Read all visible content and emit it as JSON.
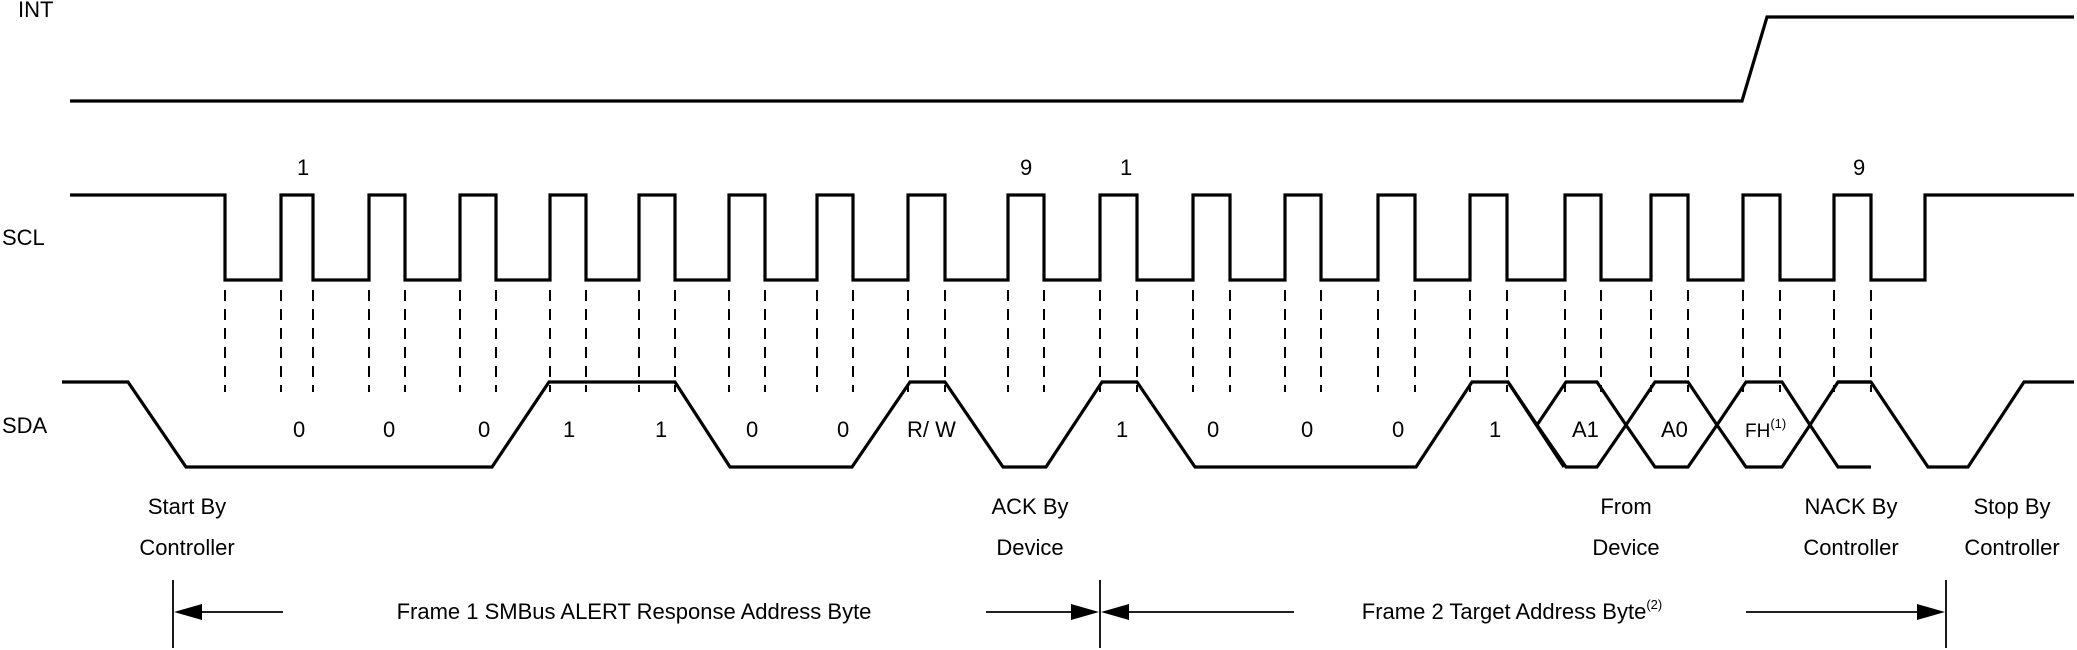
{
  "signals": {
    "int": "INT",
    "scl": "SCL",
    "sda": "SDA"
  },
  "clock_numbers": {
    "first_start": "1",
    "first_end": "9",
    "second_start": "1",
    "second_end": "9"
  },
  "frame1_bits": [
    "0",
    "0",
    "0",
    "1",
    "1",
    "0",
    "0"
  ],
  "rw_label": "R/ W",
  "frame2_bits": [
    "1",
    "0",
    "0",
    "0",
    "1"
  ],
  "frame2_special": {
    "a1": "A1",
    "a0": "A0",
    "fh": "FH",
    "fh_sup": "(1)"
  },
  "annotations": {
    "start": [
      "Start By",
      "Controller"
    ],
    "ack": [
      "ACK By",
      "Device"
    ],
    "from_device": [
      "From",
      "Device"
    ],
    "nack": [
      "NACK By",
      "Controller"
    ],
    "stop": [
      "Stop By",
      "Controller"
    ]
  },
  "frames": {
    "frame1": "Frame 1 SMBus ALERT Response Address Byte",
    "frame2": "Frame 2 Target Address Byte",
    "frame2_sup": "(2)"
  }
}
